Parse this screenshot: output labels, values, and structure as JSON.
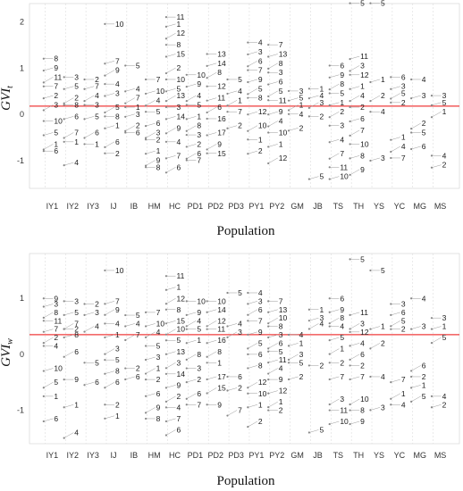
{
  "chart_data": [
    {
      "type": "scatter",
      "ylabel": {
        "main": "GVI",
        "sub": "t"
      },
      "xlabel": "Population",
      "ylim": [
        -1.6,
        2.4
      ],
      "yticks": [
        "-1",
        "0",
        "1",
        "2"
      ],
      "ytick_values": [
        -1,
        0,
        1,
        2
      ],
      "reference_line": {
        "y": 0.18,
        "color": "#ef3b3b"
      },
      "grid": "vertical dashed",
      "categories": [
        "IY1",
        "IY2",
        "IY3",
        "IJ",
        "IB",
        "HM",
        "HC",
        "PD1",
        "PD2",
        "PD3",
        "PY1",
        "PY2",
        "GM",
        "JB",
        "TS",
        "TH",
        "YS",
        "YC",
        "MG",
        "MS"
      ],
      "points": [
        {
          "cat": "IY1",
          "labels": [
            "8",
            "9",
            "11",
            "7",
            "2",
            "3",
            "10",
            "5",
            "1",
            "6"
          ],
          "values": [
            1.15,
            0.95,
            0.75,
            0.55,
            0.35,
            0.15,
            -0.2,
            -0.45,
            -0.7,
            -0.85
          ]
        },
        {
          "cat": "IY2",
          "labels": [
            "3",
            "5",
            "2",
            "8",
            "6",
            "7",
            "1",
            "4"
          ],
          "values": [
            0.75,
            0.55,
            0.3,
            0.15,
            -0.1,
            -0.45,
            -0.65,
            -1.1
          ]
        },
        {
          "cat": "IY3",
          "labels": [
            "2",
            "7",
            "4",
            "3",
            "5",
            "6",
            "1"
          ],
          "values": [
            0.7,
            0.55,
            0.35,
            0.15,
            -0.1,
            -0.45,
            -0.7
          ]
        },
        {
          "cat": "IJ",
          "labels": [
            "10",
            "7",
            "9",
            "4",
            "3",
            "5",
            "8",
            "1",
            "6",
            "2"
          ],
          "values": [
            1.9,
            1.1,
            0.9,
            0.6,
            0.4,
            0.1,
            -0.1,
            -0.3,
            -0.65,
            -0.9
          ]
        },
        {
          "cat": "IB",
          "labels": [
            "5",
            "4",
            "7",
            "1",
            "3",
            "2",
            "6"
          ],
          "values": [
            1.0,
            0.5,
            0.3,
            0.1,
            -0.05,
            -0.3,
            -0.45
          ]
        },
        {
          "cat": "HM",
          "labels": [
            "7",
            "10",
            "4",
            "5",
            "6",
            "3",
            "2",
            "1",
            "9",
            "8"
          ],
          "values": [
            0.7,
            0.45,
            0.25,
            0.0,
            -0.25,
            -0.45,
            -0.6,
            -0.85,
            -1.05,
            -1.2
          ]
        },
        {
          "cat": "HC",
          "labels": [
            "11",
            "1",
            "12",
            "8",
            "15",
            "2",
            "10",
            "5",
            "13",
            "3",
            "14",
            "9",
            "4",
            "7",
            "6"
          ],
          "values": [
            2.05,
            1.9,
            1.7,
            1.45,
            1.25,
            0.95,
            0.7,
            0.5,
            0.35,
            0.1,
            -0.1,
            -0.35,
            -0.65,
            -0.95,
            -1.2
          ]
        },
        {
          "cat": "PD1",
          "labels": [
            "10",
            "9",
            "4",
            "5",
            "1",
            "8",
            "3",
            "2",
            "6",
            "7"
          ],
          "values": [
            0.8,
            0.6,
            0.35,
            0.15,
            -0.1,
            -0.3,
            -0.5,
            -0.7,
            -0.9,
            -1.05
          ]
        },
        {
          "cat": "PD2",
          "labels": [
            "13",
            "14",
            "8",
            "12",
            "11",
            "6",
            "16",
            "17",
            "9",
            "15"
          ],
          "values": [
            1.25,
            1.05,
            0.85,
            0.55,
            0.3,
            0.1,
            -0.15,
            -0.45,
            -0.7,
            -0.9
          ]
        },
        {
          "cat": "PD3",
          "labels": [
            "5",
            "4",
            "1",
            "7",
            "2"
          ],
          "values": [
            0.7,
            0.45,
            0.25,
            0.0,
            -0.3
          ]
        },
        {
          "cat": "PY1",
          "labels": [
            "4",
            "3",
            "6",
            "7",
            "9",
            "5",
            "8",
            "12",
            "10",
            "1",
            "2"
          ],
          "values": [
            1.5,
            1.3,
            1.1,
            0.9,
            0.7,
            0.5,
            0.3,
            0.0,
            -0.3,
            -0.6,
            -0.85
          ]
        },
        {
          "cat": "PY2",
          "labels": [
            "7",
            "13",
            "8",
            "3",
            "6",
            "5",
            "11",
            "9",
            "4",
            "10",
            "1",
            "12"
          ],
          "values": [
            1.45,
            1.25,
            1.05,
            0.85,
            0.65,
            0.45,
            0.25,
            0.0,
            -0.2,
            -0.45,
            -0.7,
            -1.0
          ]
        },
        {
          "cat": "GM",
          "labels": [
            "3",
            "5",
            "1",
            "4",
            "2"
          ],
          "values": [
            0.45,
            0.3,
            0.15,
            -0.05,
            -0.35
          ]
        },
        {
          "cat": "JB",
          "labels": [
            "1",
            "4",
            "3",
            "2",
            "5"
          ],
          "values": [
            0.5,
            0.35,
            0.2,
            -0.1,
            -1.4
          ]
        },
        {
          "cat": "TS",
          "labels": [
            "6",
            "9",
            "8",
            "5",
            "1",
            "2",
            "3",
            "4",
            "7",
            "11",
            "10"
          ],
          "values": [
            1.0,
            0.8,
            0.6,
            0.4,
            0.2,
            0.0,
            -0.3,
            -0.6,
            -0.9,
            -1.2,
            -1.4
          ]
        },
        {
          "cat": "TH",
          "labels": [
            "5",
            "11",
            "3",
            "12",
            "1",
            "4",
            "2",
            "6",
            "7",
            "10",
            "8",
            "9"
          ],
          "values": [
            2.35,
            1.2,
            1.0,
            0.8,
            0.55,
            0.35,
            0.1,
            -0.15,
            -0.4,
            -0.7,
            -0.95,
            -1.25
          ]
        },
        {
          "cat": "YS",
          "labels": [
            "5",
            "1",
            "2",
            "4",
            "3"
          ],
          "values": [
            2.35,
            0.7,
            0.35,
            0.0,
            -1.0
          ]
        },
        {
          "cat": "YC",
          "labels": [
            "6",
            "3",
            "5",
            "2",
            "1",
            "4",
            "7"
          ],
          "values": [
            0.75,
            0.55,
            0.4,
            0.2,
            -0.55,
            -0.75,
            -1.0
          ]
        },
        {
          "cat": "MG",
          "labels": [
            "4",
            "3",
            "2",
            "5",
            "6"
          ],
          "values": [
            0.7,
            0.35,
            -0.25,
            -0.45,
            -0.75
          ]
        },
        {
          "cat": "MS",
          "labels": [
            "3",
            "5",
            "1",
            "4",
            "2"
          ],
          "values": [
            0.35,
            0.2,
            0.0,
            -0.95,
            -1.15
          ]
        }
      ]
    },
    {
      "type": "scatter",
      "ylabel": {
        "main": "GVI",
        "sub": "w"
      },
      "xlabel": "Population",
      "ylim": [
        -1.6,
        1.8
      ],
      "yticks": [
        "-1",
        "0",
        "1"
      ],
      "ytick_values": [
        -1,
        0,
        1
      ],
      "reference_line": {
        "y": 0.35,
        "color": "#ef3b3b"
      },
      "grid": "vertical dashed",
      "categories": [
        "IY1",
        "IY2",
        "IY3",
        "IJ",
        "IB",
        "HM",
        "HC",
        "PD1",
        "PD2",
        "PD3",
        "PY1",
        "PY2",
        "GM",
        "JB",
        "TS",
        "TH",
        "YS",
        "YC",
        "MG",
        "MS"
      ],
      "points": [
        {
          "cat": "IY1",
          "labels": [
            "9",
            "3",
            "8",
            "11",
            "7",
            "2",
            "4",
            "10",
            "5",
            "1",
            "6"
          ],
          "values": [
            0.95,
            0.85,
            0.7,
            0.55,
            0.4,
            0.25,
            0.1,
            -0.3,
            -0.55,
            -0.8,
            -1.2
          ]
        },
        {
          "cat": "IY2",
          "labels": [
            "3",
            "5",
            "7",
            "2",
            "8",
            "6",
            "9",
            "1",
            "4"
          ],
          "values": [
            0.9,
            0.7,
            0.5,
            0.4,
            0.3,
            0.0,
            -0.5,
            -0.95,
            -1.45
          ]
        },
        {
          "cat": "IY3",
          "labels": [
            "2",
            "3",
            "4",
            "5",
            "6"
          ],
          "values": [
            0.85,
            0.7,
            0.45,
            -0.2,
            -0.55
          ]
        },
        {
          "cat": "IJ",
          "labels": [
            "10",
            "7",
            "9",
            "4",
            "1",
            "3",
            "5",
            "8",
            "6",
            "2",
            "1"
          ],
          "values": [
            1.45,
            0.9,
            0.75,
            0.5,
            0.3,
            0.05,
            -0.15,
            -0.35,
            -0.55,
            -0.95,
            -1.15
          ]
        },
        {
          "cat": "IB",
          "labels": [
            "5",
            "4",
            "7",
            "2",
            "6"
          ],
          "values": [
            0.65,
            0.5,
            0.3,
            -0.3,
            -0.45
          ]
        },
        {
          "cat": "HM",
          "labels": [
            "7",
            "10",
            "4",
            "5",
            "3",
            "1",
            "2",
            "6",
            "9",
            "8"
          ],
          "values": [
            0.7,
            0.5,
            0.35,
            0.1,
            -0.1,
            -0.3,
            -0.5,
            -0.75,
            -1.0,
            -1.2
          ]
        },
        {
          "cat": "HC",
          "labels": [
            "11",
            "1",
            "12",
            "8",
            "15",
            "10",
            "5",
            "13",
            "3",
            "14",
            "9",
            "2",
            "4",
            "7",
            "6"
          ],
          "values": [
            1.35,
            1.15,
            0.95,
            0.75,
            0.55,
            0.4,
            0.2,
            0.0,
            -0.2,
            -0.4,
            -0.6,
            -0.8,
            -1.0,
            -1.2,
            -1.4
          ]
        },
        {
          "cat": "PD1",
          "labels": [
            "10",
            "9",
            "4",
            "5",
            "1",
            "8",
            "3",
            "2",
            "6",
            "7"
          ],
          "values": [
            0.9,
            0.7,
            0.55,
            0.4,
            0.2,
            -0.05,
            -0.3,
            -0.5,
            -0.75,
            -0.95
          ]
        },
        {
          "cat": "PD2",
          "labels": [
            "10",
            "14",
            "12",
            "11",
            "16",
            "8",
            "1",
            "17",
            "15",
            "9"
          ],
          "values": [
            0.9,
            0.75,
            0.55,
            0.4,
            0.2,
            0.0,
            -0.2,
            -0.45,
            -0.65,
            -0.95
          ]
        },
        {
          "cat": "PD3",
          "labels": [
            "5",
            "4",
            "3",
            "6",
            "2",
            "7"
          ],
          "values": [
            1.05,
            0.5,
            0.35,
            -0.45,
            -0.65,
            -1.05
          ]
        },
        {
          "cat": "PY1",
          "labels": [
            "4",
            "3",
            "6",
            "7",
            "9",
            "5",
            "6",
            "8",
            "12",
            "10",
            "1",
            "2"
          ],
          "values": [
            1.05,
            0.9,
            0.75,
            0.55,
            0.35,
            0.15,
            -0.05,
            -0.25,
            -0.55,
            -0.75,
            -0.95,
            -1.25
          ]
        },
        {
          "cat": "PY2",
          "labels": [
            "7",
            "13",
            "10",
            "8",
            "3",
            "6",
            "5",
            "11",
            "4",
            "9",
            "12",
            "1",
            "2"
          ],
          "values": [
            0.9,
            0.75,
            0.6,
            0.45,
            0.3,
            0.15,
            0.0,
            -0.15,
            -0.3,
            -0.5,
            -0.7,
            -0.9,
            -1.05
          ]
        },
        {
          "cat": "GM",
          "labels": [
            "4",
            "1",
            "3",
            "5",
            "2"
          ],
          "values": [
            0.3,
            0.15,
            -0.05,
            -0.2,
            -0.45
          ]
        },
        {
          "cat": "JB",
          "labels": [
            "1",
            "3",
            "4",
            "2",
            "5"
          ],
          "values": [
            0.75,
            0.6,
            0.5,
            -0.25,
            -1.4
          ]
        },
        {
          "cat": "TS",
          "labels": [
            "6",
            "9",
            "8",
            "4",
            "5",
            "1",
            "2",
            "7",
            "3",
            "11",
            "10"
          ],
          "values": [
            0.95,
            0.75,
            0.6,
            0.45,
            0.25,
            0.05,
            -0.2,
            -0.45,
            -0.85,
            -1.05,
            -1.25
          ]
        },
        {
          "cat": "TH",
          "labels": [
            "5",
            "11",
            "3",
            "12",
            "4",
            "6",
            "2",
            "7",
            "10",
            "8",
            "9"
          ],
          "values": [
            1.65,
            0.7,
            0.5,
            0.35,
            0.15,
            -0.05,
            -0.25,
            -0.45,
            -0.85,
            -1.05,
            -1.25
          ]
        },
        {
          "cat": "YS",
          "labels": [
            "5",
            "1",
            "2",
            "4",
            "3"
          ],
          "values": [
            1.45,
            0.45,
            0.15,
            -0.45,
            -1.0
          ]
        },
        {
          "cat": "YC",
          "labels": [
            "3",
            "6",
            "5",
            "2",
            "7",
            "1",
            "4"
          ],
          "values": [
            0.85,
            0.7,
            0.55,
            0.4,
            -0.5,
            -0.75,
            -0.95
          ]
        },
        {
          "cat": "MG",
          "labels": [
            "4",
            "3",
            "6",
            "2",
            "1",
            "5"
          ],
          "values": [
            0.95,
            0.45,
            -0.25,
            -0.45,
            -0.6,
            -0.8
          ]
        },
        {
          "cat": "MS",
          "labels": [
            "3",
            "1",
            "5",
            "4",
            "2"
          ],
          "values": [
            0.6,
            0.45,
            0.25,
            -0.8,
            -0.95
          ]
        }
      ]
    }
  ]
}
